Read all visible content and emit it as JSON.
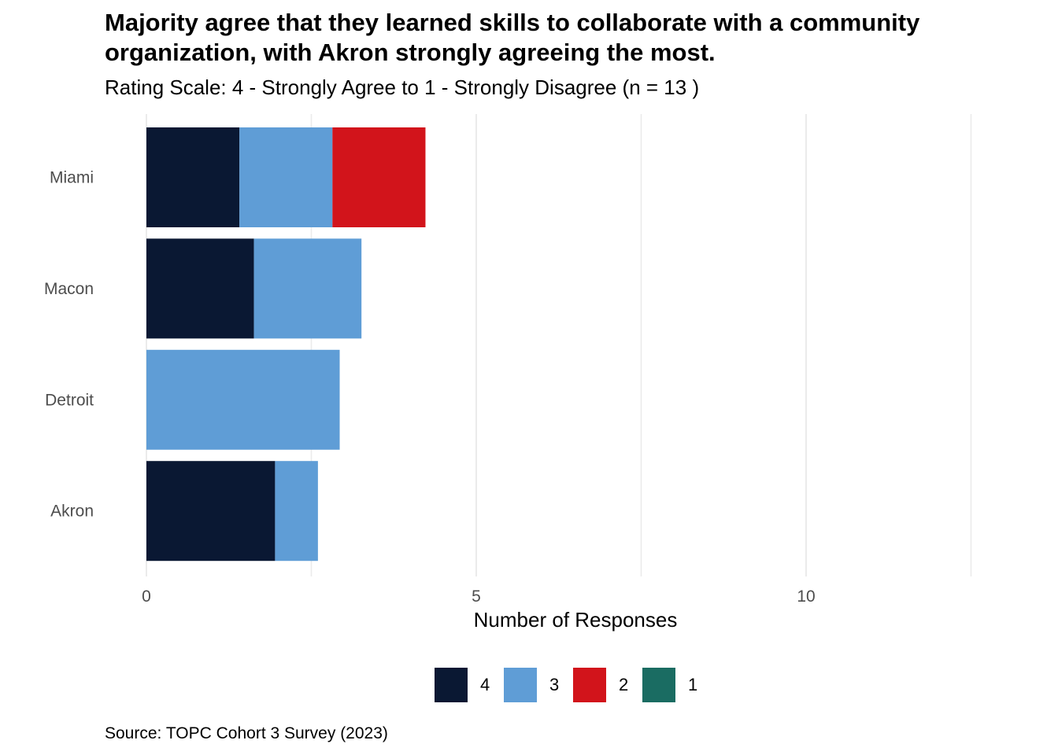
{
  "chart_data": {
    "type": "bar",
    "orientation": "horizontal",
    "stacked": true,
    "title": "Majority agree that they learned skills to collaborate with a community organization, with Akron strongly agreeing the most.",
    "subtitle": "Rating Scale: 4 - Strongly Agree to 1 - Strongly Disagree (n = 13 )",
    "xlabel": "Number of Responses",
    "ylabel": "",
    "caption": "Source: TOPC Cohort 3 Survey (2023)",
    "xlim": [
      0,
      12.5
    ],
    "xticks": [
      0,
      5,
      10
    ],
    "grid": true,
    "legend_position": "bottom",
    "categories": [
      "Akron",
      "Detroit",
      "Macon",
      "Miami"
    ],
    "series": [
      {
        "name": "4",
        "color": "#0a1833",
        "values": [
          1.95,
          0,
          1.63,
          1.41
        ]
      },
      {
        "name": "3",
        "color": "#5f9dd6",
        "values": [
          0.65,
          2.93,
          1.63,
          1.41
        ]
      },
      {
        "name": "2",
        "color": "#d2141b",
        "values": [
          0,
          0,
          0,
          1.41
        ]
      },
      {
        "name": "1",
        "color": "#1a6c62",
        "values": [
          0,
          0,
          0,
          0
        ]
      }
    ]
  }
}
